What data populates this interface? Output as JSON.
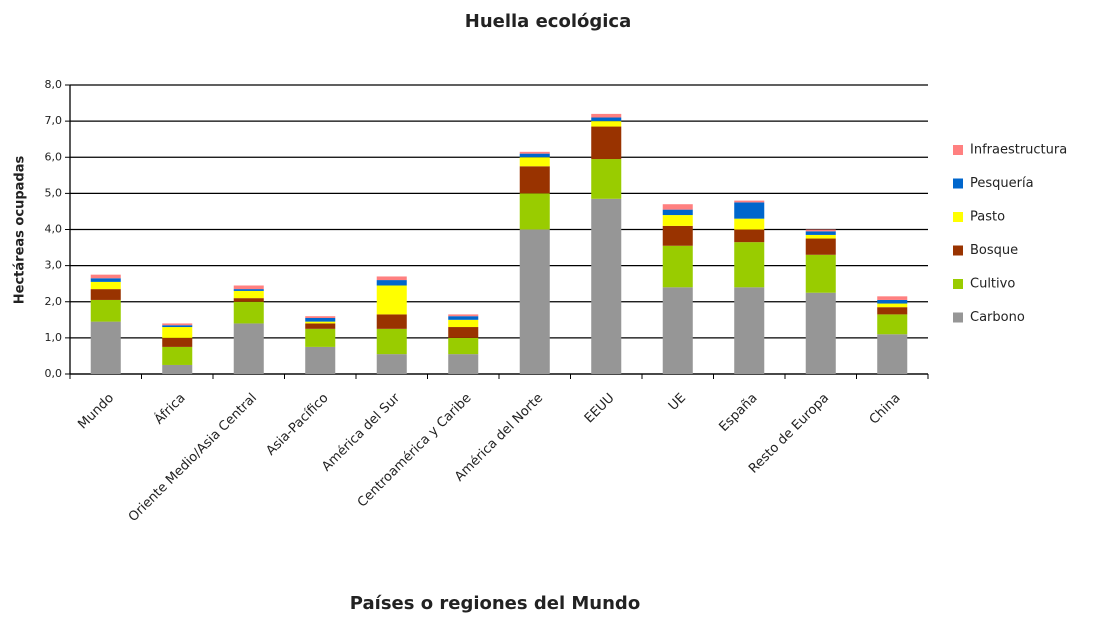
{
  "chart_data": {
    "type": "stacked_bar",
    "title": "Huella ecológica",
    "x_label": "Países o regiones del Mundo",
    "y_label": "Hectáreas ocupadas",
    "categories": [
      "Mundo",
      "África",
      "Oriente Medio/Asia Central",
      "Asia-Pacífico",
      "América del Sur",
      "Centroamérica y Caribe",
      "América del Norte",
      "EEUU",
      "UE",
      "España",
      "Resto de Europa",
      "China"
    ],
    "series": [
      {
        "name": "Carbono",
        "color": "#969696",
        "values": [
          1.45,
          0.25,
          1.4,
          0.75,
          0.55,
          0.55,
          4.0,
          4.85,
          2.4,
          2.4,
          2.25,
          1.1
        ]
      },
      {
        "name": "Cultivo",
        "color": "#99cc00",
        "values": [
          0.6,
          0.5,
          0.6,
          0.5,
          0.7,
          0.45,
          1.0,
          1.1,
          1.15,
          1.25,
          1.05,
          0.55
        ]
      },
      {
        "name": "Bosque",
        "color": "#993300",
        "values": [
          0.3,
          0.25,
          0.1,
          0.15,
          0.4,
          0.3,
          0.75,
          0.9,
          0.55,
          0.35,
          0.45,
          0.2
        ]
      },
      {
        "name": "Pasto",
        "color": "#ffff00",
        "values": [
          0.2,
          0.3,
          0.2,
          0.05,
          0.8,
          0.2,
          0.25,
          0.15,
          0.3,
          0.3,
          0.1,
          0.1
        ]
      },
      {
        "name": "Pesquería",
        "color": "#0066cc",
        "values": [
          0.1,
          0.05,
          0.05,
          0.1,
          0.15,
          0.1,
          0.1,
          0.1,
          0.15,
          0.45,
          0.1,
          0.1
        ]
      },
      {
        "name": "Infraestructura",
        "color": "#ff8080",
        "values": [
          0.1,
          0.05,
          0.1,
          0.05,
          0.1,
          0.05,
          0.05,
          0.1,
          0.15,
          0.05,
          0.05,
          0.1
        ]
      }
    ],
    "ylim": [
      0,
      8
    ],
    "yticks": [
      {
        "value": 0,
        "label": "0,0"
      },
      {
        "value": 1,
        "label": "1,0"
      },
      {
        "value": 2,
        "label": "2,0"
      },
      {
        "value": 3,
        "label": "3,0"
      },
      {
        "value": 4,
        "label": "4,0"
      },
      {
        "value": 5,
        "label": "5,0"
      },
      {
        "value": 6,
        "label": "6,0"
      },
      {
        "value": 7,
        "label": "7,0"
      },
      {
        "value": 8,
        "label": "8,0"
      }
    ],
    "grid": true,
    "legend": "right"
  }
}
